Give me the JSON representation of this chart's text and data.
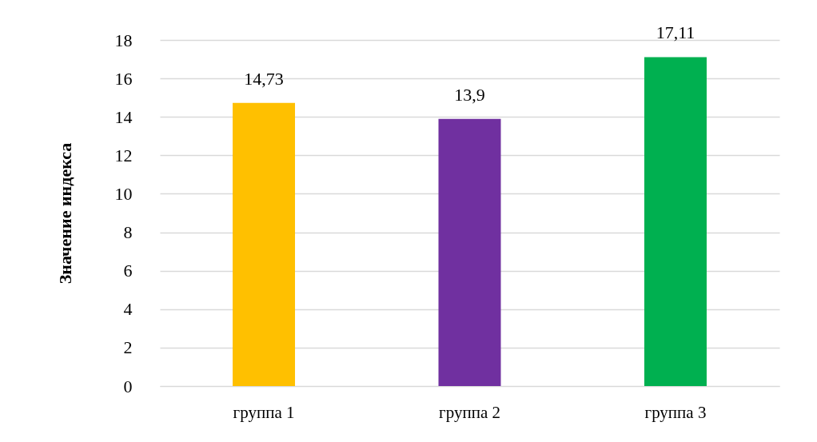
{
  "chart_data": {
    "type": "bar",
    "ylabel": "Значение индекса",
    "categories": [
      "группа 1",
      "группа 2",
      "группа 3"
    ],
    "values": [
      14.73,
      13.9,
      17.11
    ],
    "colors": [
      "#ffc000",
      "#7030a0",
      "#00b050"
    ],
    "value_labels": [
      "14,73",
      "13,9",
      "17,11"
    ],
    "ylim": [
      0,
      18
    ],
    "yticks": [
      0,
      2,
      4,
      6,
      8,
      10,
      12,
      14,
      16,
      18
    ],
    "grid": "y",
    "legend": false
  }
}
